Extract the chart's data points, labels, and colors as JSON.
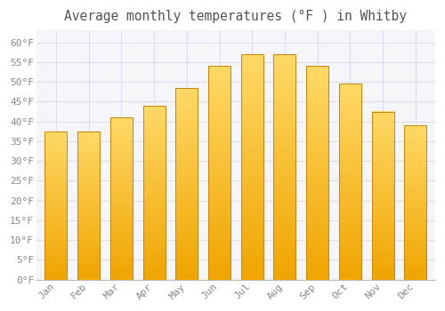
{
  "title": "Average monthly temperatures (°F ) in Whitby",
  "months": [
    "Jan",
    "Feb",
    "Mar",
    "Apr",
    "May",
    "Jun",
    "Jul",
    "Aug",
    "Sep",
    "Oct",
    "Nov",
    "Dec"
  ],
  "values": [
    37.5,
    37.5,
    41.0,
    44.0,
    48.5,
    54.0,
    57.0,
    57.0,
    54.0,
    49.5,
    42.5,
    39.0
  ],
  "bar_color_top": "#FFD966",
  "bar_color_bottom": "#F0A500",
  "bar_edge_color": "#C8860A",
  "background_color": "#FFFFFF",
  "plot_bg_color": "#F5F5FA",
  "grid_color": "#DDDDEE",
  "title_fontsize": 10.5,
  "tick_fontsize": 8,
  "ylim": [
    0,
    63
  ],
  "yticks": [
    0,
    5,
    10,
    15,
    20,
    25,
    30,
    35,
    40,
    45,
    50,
    55,
    60
  ],
  "ytick_labels": [
    "0°F",
    "5°F",
    "10°F",
    "15°F",
    "20°F",
    "25°F",
    "30°F",
    "35°F",
    "40°F",
    "45°F",
    "50°F",
    "55°F",
    "60°F"
  ],
  "bar_width": 0.68
}
